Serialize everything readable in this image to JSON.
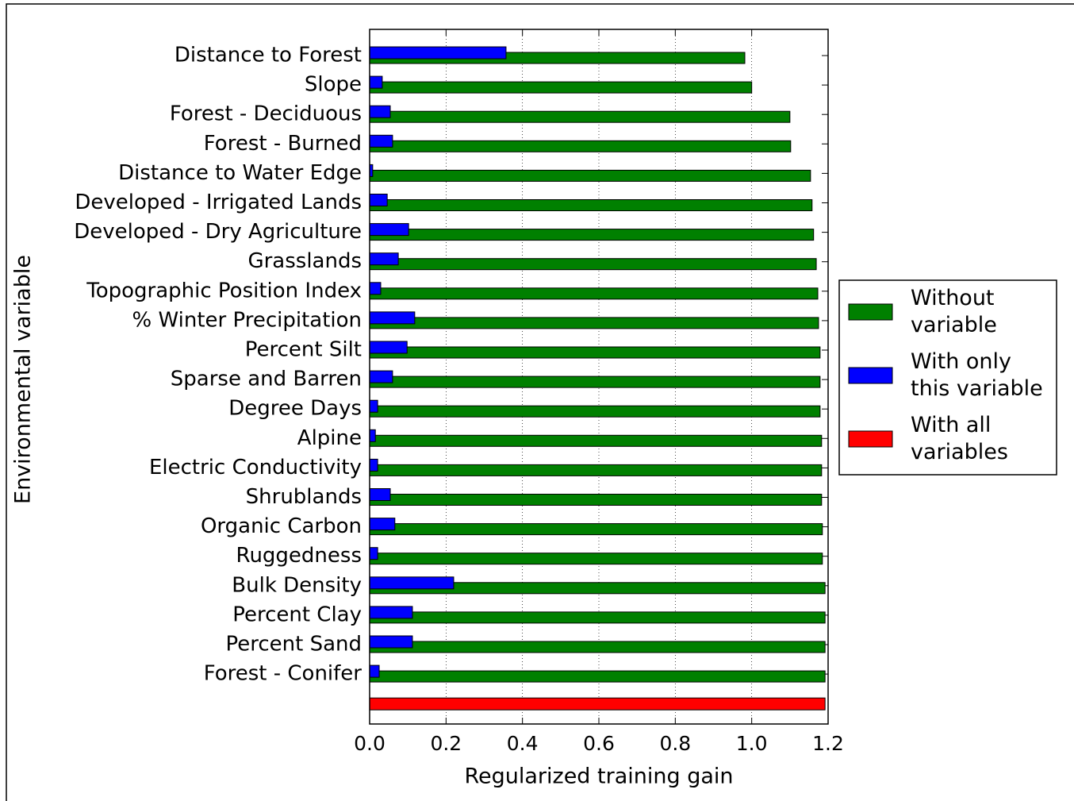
{
  "chart_data": {
    "type": "barh",
    "xlabel": "Regularized training gain",
    "ylabel": "Environmental variable",
    "categories": [
      "Distance to Forest",
      "Slope",
      "Forest - Deciduous",
      "Forest - Burned",
      "Distance to Water Edge",
      "Developed - Irrigated Lands",
      "Developed - Dry Agriculture",
      "Grasslands",
      "Topographic Position Index",
      "% Winter Precipitation",
      "Percent Silt",
      "Sparse and Barren",
      "Degree Days",
      "Alpine",
      "Electric Conductivity",
      "Shrublands",
      "Organic Carbon",
      "Ruggedness",
      "Bulk Density",
      "Percent Clay",
      "Percent Sand",
      "Forest - Conifer",
      null
    ],
    "series": [
      {
        "name": "Without variable",
        "color": "#008000",
        "values": [
          0.982,
          1.0,
          1.1,
          1.102,
          1.154,
          1.158,
          1.162,
          1.169,
          1.173,
          1.175,
          1.179,
          1.179,
          1.179,
          1.183,
          1.183,
          1.183,
          1.185,
          1.185,
          1.192,
          1.192,
          1.192,
          1.192,
          null
        ]
      },
      {
        "name": "With only this variable",
        "color": "#0000ff",
        "values": [
          0.357,
          0.033,
          0.054,
          0.06,
          0.008,
          0.046,
          0.102,
          0.075,
          0.029,
          0.118,
          0.098,
          0.06,
          0.021,
          0.015,
          0.021,
          0.054,
          0.066,
          0.021,
          0.22,
          0.112,
          0.112,
          0.025,
          null
        ]
      },
      {
        "name": "With all variables",
        "color": "#ff0000",
        "values": [
          null,
          null,
          null,
          null,
          null,
          null,
          null,
          null,
          null,
          null,
          null,
          null,
          null,
          null,
          null,
          null,
          null,
          null,
          null,
          null,
          null,
          null,
          1.192
        ]
      }
    ],
    "xlim": [
      0,
      1.2
    ],
    "xticks": [
      {
        "value": 0,
        "label": "0.0"
      },
      0.2,
      0.4,
      0.6,
      0.8,
      {
        "value": 1,
        "label": "1.0"
      },
      1.2
    ],
    "grid": true,
    "legend": "center right"
  }
}
